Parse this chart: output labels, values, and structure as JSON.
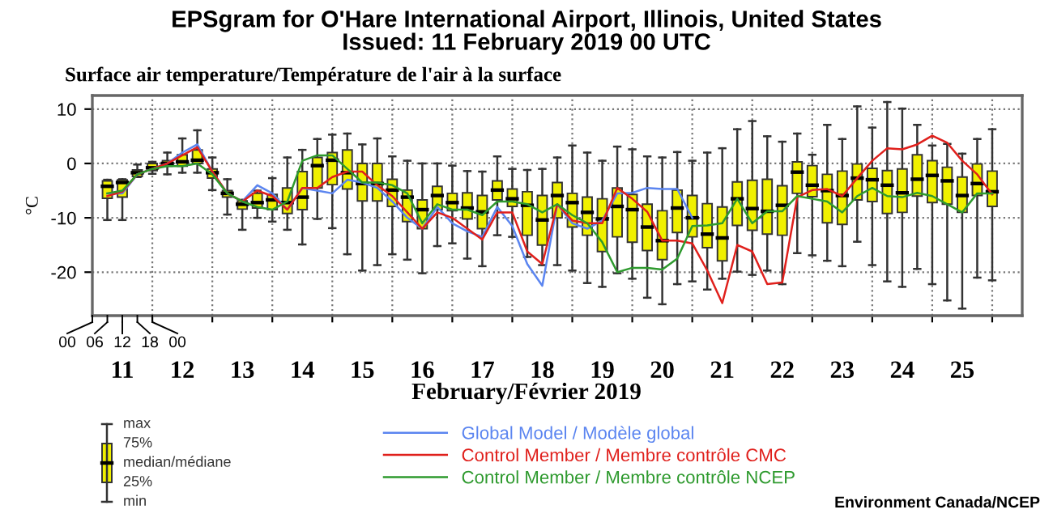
{
  "chart_data": {
    "type": "box",
    "title": "EPSgram for O'Hare International Airport, Illinois, United States",
    "subtitle": "Issued: 11 February 2019 00 UTC",
    "xlabel": "February/Février 2019",
    "ylabel": "°C",
    "annotations": [
      "Surface air temperature/Température de l'air à la surface",
      "max",
      "75%",
      "median/médiane",
      "25%",
      "min",
      "Environment Canada/NCEP",
      "00",
      "06",
      "12",
      "18",
      "00"
    ],
    "x": [
      "2019-02-11T06:00",
      "2019-02-11T12:00",
      "2019-02-11T18:00",
      "2019-02-12T00:00",
      "2019-02-12T06:00",
      "2019-02-12T12:00",
      "2019-02-12T18:00",
      "2019-02-13T00:00",
      "2019-02-13T06:00",
      "2019-02-13T12:00",
      "2019-02-13T18:00",
      "2019-02-14T00:00",
      "2019-02-14T06:00",
      "2019-02-14T12:00",
      "2019-02-14T18:00",
      "2019-02-15T00:00",
      "2019-02-15T06:00",
      "2019-02-15T12:00",
      "2019-02-15T18:00",
      "2019-02-16T00:00",
      "2019-02-16T06:00",
      "2019-02-16T12:00",
      "2019-02-16T18:00",
      "2019-02-17T00:00",
      "2019-02-17T06:00",
      "2019-02-17T12:00",
      "2019-02-17T18:00",
      "2019-02-18T00:00",
      "2019-02-18T06:00",
      "2019-02-18T12:00",
      "2019-02-18T18:00",
      "2019-02-19T00:00",
      "2019-02-19T06:00",
      "2019-02-19T12:00",
      "2019-02-19T18:00",
      "2019-02-20T00:00",
      "2019-02-20T06:00",
      "2019-02-20T12:00",
      "2019-02-20T18:00",
      "2019-02-21T00:00",
      "2019-02-21T06:00",
      "2019-02-21T12:00",
      "2019-02-21T18:00",
      "2019-02-22T00:00",
      "2019-02-22T06:00",
      "2019-02-22T12:00",
      "2019-02-22T18:00",
      "2019-02-23T00:00",
      "2019-02-23T06:00",
      "2019-02-23T12:00",
      "2019-02-23T18:00",
      "2019-02-24T00:00",
      "2019-02-24T06:00",
      "2019-02-24T12:00",
      "2019-02-24T18:00",
      "2019-02-25T00:00",
      "2019-02-25T06:00",
      "2019-02-25T12:00",
      "2019-02-25T18:00",
      "2019-02-26T00:00"
    ],
    "xlim": [
      "2019-02-11T00:00",
      "2019-02-26T12:00"
    ],
    "xticks": [
      {
        "value": "2019-02-12T00:00",
        "label": null
      },
      {
        "value": "2019-02-13T00:00",
        "label": null
      },
      {
        "value": "2019-02-14T00:00",
        "label": null
      },
      {
        "value": "2019-02-15T00:00",
        "label": null
      },
      {
        "value": "2019-02-16T00:00",
        "label": null
      },
      {
        "value": "2019-02-17T00:00",
        "label": null
      },
      {
        "value": "2019-02-18T00:00",
        "label": null
      },
      {
        "value": "2019-02-19T00:00",
        "label": null
      },
      {
        "value": "2019-02-20T00:00",
        "label": null
      },
      {
        "value": "2019-02-21T00:00",
        "label": null
      },
      {
        "value": "2019-02-22T00:00",
        "label": null
      },
      {
        "value": "2019-02-23T00:00",
        "label": null
      },
      {
        "value": "2019-02-24T00:00",
        "label": null
      },
      {
        "value": "2019-02-25T00:00",
        "label": null
      },
      {
        "value": "2019-02-26T00:00",
        "label": null
      },
      {
        "value": "2019-02-11T12:00",
        "label": "11"
      },
      {
        "value": "2019-02-12T12:00",
        "label": "12"
      },
      {
        "value": "2019-02-13T12:00",
        "label": "13"
      },
      {
        "value": "2019-02-14T12:00",
        "label": "14"
      },
      {
        "value": "2019-02-15T12:00",
        "label": "15"
      },
      {
        "value": "2019-02-16T12:00",
        "label": "16"
      },
      {
        "value": "2019-02-17T12:00",
        "label": "17"
      },
      {
        "value": "2019-02-18T12:00",
        "label": "18"
      },
      {
        "value": "2019-02-19T12:00",
        "label": "19"
      },
      {
        "value": "2019-02-20T12:00",
        "label": "20"
      },
      {
        "value": "2019-02-21T12:00",
        "label": "21"
      },
      {
        "value": "2019-02-22T12:00",
        "label": "22"
      },
      {
        "value": "2019-02-23T12:00",
        "label": "23"
      },
      {
        "value": "2019-02-24T12:00",
        "label": "24"
      },
      {
        "value": "2019-02-25T12:00",
        "label": "25"
      }
    ],
    "ylim": [
      -28,
      12.5
    ],
    "yticks": [
      -20,
      -10,
      0,
      10
    ],
    "grid": true,
    "legend": "bottom",
    "series": [
      {
        "color": "#f0f000",
        "boxes": [
          {
            "high": -3,
            "q3": -3.2,
            "median": -4.2,
            "q1": -6.4,
            "low": -10.4
          },
          {
            "high": -2.9,
            "q3": -3,
            "median": -3.5,
            "q1": -6.2,
            "low": -10.4
          },
          {
            "high": -0.2,
            "q3": -1.2,
            "median": -1.7,
            "q1": -2.4,
            "low": -2.5
          },
          {
            "high": 0.3,
            "q3": 0,
            "median": -0.8,
            "q1": -1.3,
            "low": -1.9
          },
          {
            "high": 2,
            "q3": 0.5,
            "median": 0,
            "q1": -0.5,
            "low": -2
          },
          {
            "high": 4.6,
            "q3": 1.6,
            "median": 0.3,
            "q1": -0.5,
            "low": -1.7
          },
          {
            "high": 6.1,
            "q3": 2.5,
            "median": 0.6,
            "q1": 0,
            "low": -1.7
          },
          {
            "high": 1.1,
            "q3": -1,
            "median": -1.7,
            "q1": -2.7,
            "low": -4.9
          },
          {
            "high": -2.9,
            "q3": -5,
            "median": -5.5,
            "q1": -6.2,
            "low": -9.4
          },
          {
            "high": -6.7,
            "q3": -6.9,
            "median": -7.5,
            "q1": -8.4,
            "low": -12.2
          },
          {
            "high": -5,
            "q3": -5.5,
            "median": -7.2,
            "q1": -8.2,
            "low": -10
          },
          {
            "high": -2.7,
            "q3": -5.7,
            "median": -6.7,
            "q1": -8.5,
            "low": -10.7
          },
          {
            "high": 1.1,
            "q3": -4.5,
            "median": -7.2,
            "q1": -9.2,
            "low": -12.2
          },
          {
            "high": 2.5,
            "q3": -1.5,
            "median": -6.2,
            "q1": -8.5,
            "low": -14.9
          },
          {
            "high": 4.5,
            "q3": 1.1,
            "median": -0.4,
            "q1": -4.5,
            "low": -10.2
          },
          {
            "high": 5.3,
            "q3": 2,
            "median": 0.6,
            "q1": -3.9,
            "low": -11.9
          },
          {
            "high": 5.5,
            "q3": 2.5,
            "median": -1.7,
            "q1": -4.7,
            "low": -16.7
          },
          {
            "high": 3.5,
            "q3": 0,
            "median": -3.7,
            "q1": -6.9,
            "low": -19.7
          },
          {
            "high": 4.6,
            "q3": 0,
            "median": -3.7,
            "q1": -6.9,
            "low": -18.7
          },
          {
            "high": 1.3,
            "q3": -2.9,
            "median": -4.9,
            "q1": -7.9,
            "low": -16.7
          },
          {
            "high": 0.5,
            "q3": -4.9,
            "median": -6.2,
            "q1": -10.7,
            "low": -17.7
          },
          {
            "high": 0,
            "q3": -6.7,
            "median": -8.5,
            "q1": -12,
            "low": -20.2
          },
          {
            "high": 0,
            "q3": -4.2,
            "median": -5.9,
            "q1": -8.5,
            "low": -15.2
          },
          {
            "high": -0.4,
            "q3": -5.5,
            "median": -7.2,
            "q1": -8.7,
            "low": -14.7
          },
          {
            "high": -1.4,
            "q3": -5.4,
            "median": -8.2,
            "q1": -10.2,
            "low": -17.5
          },
          {
            "high": -1.5,
            "q3": -5.9,
            "median": -8.9,
            "q1": -12,
            "low": -18.9
          },
          {
            "high": 1.3,
            "q3": -3.2,
            "median": -4.9,
            "q1": -6.7,
            "low": -13.2
          },
          {
            "high": -1,
            "q3": -4.7,
            "median": -6.5,
            "q1": -7.9,
            "low": -13.5
          },
          {
            "high": -1.2,
            "q3": -5.2,
            "median": -7.7,
            "q1": -13.2,
            "low": -17.2
          },
          {
            "high": -1,
            "q3": -5.9,
            "median": -10.4,
            "q1": -15,
            "low": -18.7
          },
          {
            "high": 1.1,
            "q3": -3.5,
            "median": -5.9,
            "q1": -10,
            "low": -18.7
          },
          {
            "high": 3.3,
            "q3": -5.5,
            "median": -7.2,
            "q1": -11.7,
            "low": -19.7
          },
          {
            "high": 2,
            "q3": -6.2,
            "median": -9,
            "q1": -13.2,
            "low": -22
          },
          {
            "high": 0.5,
            "q3": -6.5,
            "median": -10.2,
            "q1": -16.2,
            "low": -22.7
          },
          {
            "high": 3.1,
            "q3": -4.5,
            "median": -7.9,
            "q1": -13.5,
            "low": -20.2
          },
          {
            "high": 2.6,
            "q3": -5.7,
            "median": -8.5,
            "q1": -14.5,
            "low": -21.2
          },
          {
            "high": 1.3,
            "q3": -7.5,
            "median": -11.7,
            "q1": -16,
            "low": -24.7
          },
          {
            "high": 1.1,
            "q3": -8.7,
            "median": -14.2,
            "q1": -17.7,
            "low": -25.9
          },
          {
            "high": 2.1,
            "q3": -4.9,
            "median": -8.2,
            "q1": -12.7,
            "low": -22.2
          },
          {
            "high": 0.5,
            "q3": -5.9,
            "median": -10,
            "q1": -13.5,
            "low": -21.7
          },
          {
            "high": 2,
            "q3": -7.4,
            "median": -13,
            "q1": -15.5,
            "low": -23.2
          },
          {
            "high": 2.8,
            "q3": -8,
            "median": -13.7,
            "q1": -17.9,
            "low": -21.2
          },
          {
            "high": 6.3,
            "q3": -3.4,
            "median": -6.5,
            "q1": -11.4,
            "low": -19.9
          },
          {
            "high": 7.8,
            "q3": -3.1,
            "median": -8.3,
            "q1": -12.3,
            "low": -20.5
          },
          {
            "high": 5,
            "q3": -2.9,
            "median": -8.8,
            "q1": -13,
            "low": -19.7
          },
          {
            "high": 4,
            "q3": -4.1,
            "median": -7.7,
            "q1": -13.2,
            "low": -22.2
          },
          {
            "high": 5.5,
            "q3": 0.3,
            "median": -1.6,
            "q1": -5.5,
            "low": -16.5
          },
          {
            "high": 1.6,
            "q3": -0.4,
            "median": -4,
            "q1": -6.1,
            "low": -16.9
          },
          {
            "high": 7.1,
            "q3": -2,
            "median": -5,
            "q1": -10.9,
            "low": -17.9
          },
          {
            "high": 4.5,
            "q3": -1.4,
            "median": -5.9,
            "q1": -11.2,
            "low": -18.9
          },
          {
            "high": 10.5,
            "q3": -0.1,
            "median": -2.7,
            "q1": -6.7,
            "low": -14.4
          },
          {
            "high": 6.6,
            "q3": -0.9,
            "median": -3,
            "q1": -7,
            "low": -18.7
          },
          {
            "high": 11.3,
            "q3": -1.3,
            "median": -4,
            "q1": -9.2,
            "low": -21.7
          },
          {
            "high": 10.1,
            "q3": -1,
            "median": -5.4,
            "q1": -9,
            "low": -22.7
          },
          {
            "high": 7.1,
            "q3": 1.6,
            "median": -2.9,
            "q1": -6,
            "low": -19.4
          },
          {
            "high": 3.3,
            "q3": 0.5,
            "median": -2.2,
            "q1": -7.2,
            "low": -22.2
          },
          {
            "high": 3.6,
            "q3": -0.7,
            "median": -3.2,
            "q1": -7.5,
            "low": -25.2
          },
          {
            "high": 1.8,
            "q3": -2.5,
            "median": -5.9,
            "q1": -9,
            "low": -26.7
          },
          {
            "high": 4.5,
            "q3": -0.1,
            "median": -3.7,
            "q1": -5.9,
            "low": -21
          },
          {
            "high": 6.3,
            "q3": -1.4,
            "median": -5.2,
            "q1": -7.9,
            "low": -21.5
          }
        ]
      },
      {
        "type": "line",
        "name": "Global Model / Modèle global",
        "color": "#5b85f0",
        "values": [
          -5.5,
          -5.5,
          -2,
          -1,
          0,
          2,
          3.5,
          -1.5,
          -5.5,
          -7,
          -4,
          -5.5,
          -8.5,
          -4.5,
          -5,
          -5.5,
          -3,
          -3.5,
          -4.5,
          -7,
          -10,
          -12,
          -8,
          -11,
          -12.5,
          -13.5,
          -8,
          -11.5,
          -18.5,
          -22.5,
          -7.5,
          -11,
          -12,
          -10.5,
          -5.5,
          -5.4,
          -4.5,
          -4.7,
          -4.7,
          -10,
          null,
          null,
          null,
          null,
          null,
          null,
          null,
          null,
          null,
          null,
          null,
          null,
          null,
          null,
          null,
          null,
          null,
          null,
          null,
          null
        ]
      },
      {
        "type": "line",
        "name": "Control Member / Membre contrôle CMC",
        "color": "#e0201c",
        "values": [
          -6,
          -5.2,
          -2,
          -1,
          0,
          1.5,
          3,
          -1.5,
          -5.5,
          -7,
          -5,
          -6,
          -8.5,
          -4.5,
          -4.5,
          -2.5,
          -1.5,
          -1.5,
          -4,
          -6,
          -9,
          -12,
          -9,
          -10,
          -12,
          -14,
          -9,
          -9,
          -16.2,
          -18.5,
          -7.5,
          -10.5,
          -11,
          -11,
          -4.5,
          -6.5,
          -8.9,
          -14.2,
          -14.2,
          -14.7,
          -19.7,
          -25.7,
          -15,
          -16.2,
          -22.2,
          -21.9,
          -6.2,
          -4.9,
          -4.7,
          -6,
          -2.7,
          0.5,
          2.8,
          2.6,
          3.5,
          5.1,
          3.8,
          0.5,
          -2,
          -5.7
        ]
      },
      {
        "type": "line",
        "name": "Control Member / Membre contrôle NCEP",
        "color": "#2e9a2e",
        "values": [
          -5.5,
          -5,
          -2,
          -1,
          -0.5,
          -0.5,
          0,
          -2,
          -5.5,
          -7,
          -8,
          -8.5,
          -7,
          0.5,
          1.5,
          1.5,
          -1,
          -3.5,
          -3.5,
          -4,
          -5.5,
          -11,
          -7.5,
          -8.5,
          -8.5,
          -9.5,
          -7,
          -7,
          -7.5,
          -9,
          -7.5,
          -9.5,
          -11,
          -14.5,
          -20,
          -19.2,
          -19.2,
          -19.5,
          -17.5,
          -11.5,
          -11.4,
          -11,
          -6.5,
          -11,
          -8.8,
          -8.8,
          -6,
          -6.5,
          -7,
          -9,
          -6,
          -4.5,
          -6,
          -6.2,
          -5.4,
          -6,
          -7.5,
          -9,
          -5.5,
          -5.5
        ]
      }
    ]
  }
}
